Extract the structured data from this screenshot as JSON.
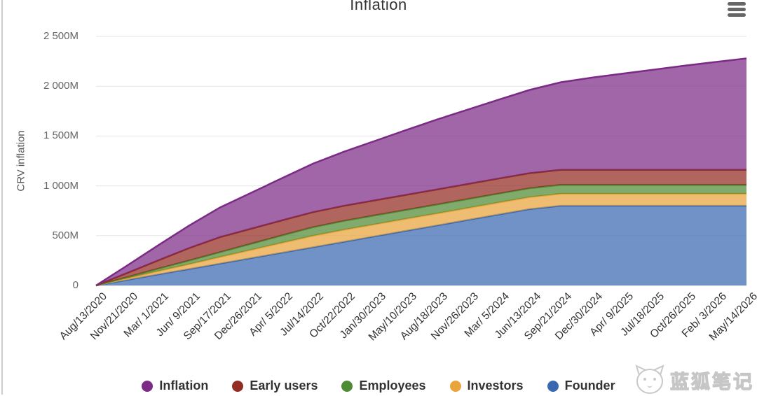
{
  "page": {
    "background_color": "#ffffff",
    "left_border_color": "#cccccc"
  },
  "header": {
    "title": "Inflation"
  },
  "controls": {
    "menu_icon": "hamburger-menu",
    "menu_bar_color": "#666666"
  },
  "watermark": {
    "text": "蓝狐笔记",
    "logo": "fox-face-logo",
    "color": "#c6c6c6"
  },
  "chart_data": {
    "type": "area",
    "stacked": true,
    "title": "Inflation",
    "xlabel": "",
    "ylabel": "CRV inflation",
    "unit": "M = millions of CRV",
    "ylim": [
      0,
      2500
    ],
    "grid": true,
    "gridline_color": "#e6e6e6",
    "axis_line_color": "#d8d8d8",
    "fill_opacity": 0.72,
    "x_label_rotation": -45,
    "legend_position": "bottom",
    "y_ticks": [
      {
        "value": 0,
        "label": "0"
      },
      {
        "value": 500,
        "label": "500M"
      },
      {
        "value": 1000,
        "label": "1 000M"
      },
      {
        "value": 1500,
        "label": "1 500M"
      },
      {
        "value": 2000,
        "label": "2 000M"
      },
      {
        "value": 2500,
        "label": "2 500M"
      }
    ],
    "categories": [
      "Aug/13/2020",
      "Nov/21/2020",
      "Mar/ 1/2021",
      "Jun/ 9/2021",
      "Sep/17/2021",
      "Dec/26/2021",
      "Apr/ 5/2022",
      "Jul/14/2022",
      "Oct/22/2022",
      "Jan/30/2023",
      "May/10/2023",
      "Aug/18/2023",
      "Nov/26/2023",
      "Mar/ 5/2024",
      "Jun/13/2024",
      "Sep/21/2024",
      "Dec/30/2024",
      "Apr/ 9/2025",
      "Jul/18/2025",
      "Oct/26/2025",
      "Feb/ 3/2026",
      "May/14/2026"
    ],
    "series": [
      {
        "name": "Inflation",
        "color": "#7b2b85",
        "values": [
          0,
          75,
          151,
          226,
          297,
          360,
          423,
          487,
          543,
          596,
          649,
          702,
          747,
          792,
          836,
          878,
          925,
          965,
          1005,
          1045,
          1082,
          1118
        ]
      },
      {
        "name": "Early users",
        "color": "#922b21",
        "values": [
          0,
          41,
          83,
          124,
          151,
          151,
          151,
          151,
          151,
          151,
          151,
          151,
          151,
          151,
          151,
          151,
          151,
          151,
          151,
          151,
          151,
          151
        ]
      },
      {
        "name": "Employees",
        "color": "#4f8a35",
        "values": [
          0,
          12,
          25,
          37,
          49,
          62,
          74,
          86,
          90,
          90,
          90,
          90,
          90,
          90,
          90,
          90,
          90,
          90,
          90,
          90,
          90,
          90
        ]
      },
      {
        "name": "Investors",
        "color": "#e9a43b",
        "values": [
          0,
          16,
          33,
          49,
          66,
          82,
          99,
          115,
          120,
          120,
          120,
          120,
          120,
          120,
          120,
          120,
          120,
          120,
          120,
          120,
          120,
          120
        ]
      },
      {
        "name": "Founder",
        "color": "#3a68b0",
        "values": [
          0,
          55,
          110,
          164,
          219,
          274,
          329,
          383,
          438,
          493,
          548,
          602,
          657,
          712,
          766,
          800,
          800,
          800,
          800,
          800,
          800,
          800
        ]
      }
    ],
    "stack_order_bottom_to_top": [
      "Founder",
      "Investors",
      "Employees",
      "Early users",
      "Inflation"
    ]
  }
}
